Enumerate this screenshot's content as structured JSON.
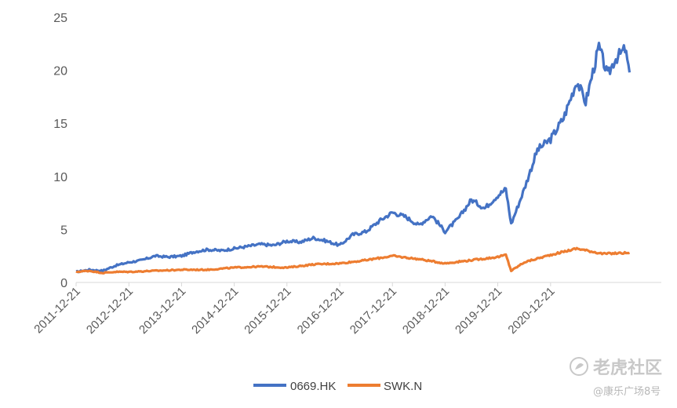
{
  "chart_data": {
    "type": "line",
    "title": "",
    "xlabel": "",
    "ylabel": "",
    "ylim": [
      0,
      25
    ],
    "yticks": [
      0,
      5,
      10,
      15,
      20,
      25
    ],
    "xlim": [
      "2011-12-21",
      "2021-12-21"
    ],
    "xticks": [
      "2011-12-21",
      "2012-12-21",
      "2013-12-21",
      "2014-12-21",
      "2015-12-21",
      "2016-12-21",
      "2017-12-21",
      "2018-12-21",
      "2019-12-21",
      "2020-12-21"
    ],
    "grid": false,
    "legend": "bottom",
    "series": [
      {
        "name": "0669.HK",
        "color": "#4472C4",
        "points": [
          [
            "2011-12-21",
            1.0
          ],
          [
            "2012-03-21",
            1.2
          ],
          [
            "2012-06-21",
            1.1
          ],
          [
            "2012-09-21",
            1.6
          ],
          [
            "2012-12-21",
            1.9
          ],
          [
            "2013-03-21",
            2.1
          ],
          [
            "2013-06-21",
            2.5
          ],
          [
            "2013-09-21",
            2.4
          ],
          [
            "2013-12-21",
            2.5
          ],
          [
            "2014-03-21",
            2.9
          ],
          [
            "2014-06-21",
            3.1
          ],
          [
            "2014-09-21",
            3.0
          ],
          [
            "2014-12-21",
            3.2
          ],
          [
            "2015-03-21",
            3.4
          ],
          [
            "2015-06-21",
            3.6
          ],
          [
            "2015-09-21",
            3.5
          ],
          [
            "2015-12-21",
            3.9
          ],
          [
            "2016-03-21",
            3.8
          ],
          [
            "2016-06-21",
            4.2
          ],
          [
            "2016-09-21",
            3.9
          ],
          [
            "2016-12-21",
            3.5
          ],
          [
            "2017-03-21",
            4.5
          ],
          [
            "2017-06-21",
            4.8
          ],
          [
            "2017-09-21",
            5.8
          ],
          [
            "2017-12-21",
            6.6
          ],
          [
            "2018-03-21",
            6.2
          ],
          [
            "2018-06-21",
            5.4
          ],
          [
            "2018-09-21",
            6.3
          ],
          [
            "2018-12-21",
            4.8
          ],
          [
            "2019-03-21",
            6.0
          ],
          [
            "2019-06-21",
            7.8
          ],
          [
            "2019-09-21",
            7.0
          ],
          [
            "2019-12-21",
            8.2
          ],
          [
            "2020-02-15",
            8.8
          ],
          [
            "2020-03-23",
            5.5
          ],
          [
            "2020-06-21",
            8.8
          ],
          [
            "2020-09-21",
            12.5
          ],
          [
            "2020-12-21",
            13.5
          ],
          [
            "2021-03-21",
            15.5
          ],
          [
            "2021-06-21",
            19.0
          ],
          [
            "2021-08-21",
            17.0
          ],
          [
            "2021-11-21",
            22.2
          ],
          [
            "2022-01-21",
            19.5
          ],
          [
            "2022-03-10",
            21.0
          ],
          [
            "2022-05-21",
            22.0
          ],
          [
            "2022-06-21",
            19.8
          ]
        ]
      },
      {
        "name": "SWK.N",
        "color": "#ED7D31",
        "points": [
          [
            "2011-12-21",
            1.0
          ],
          [
            "2012-03-21",
            1.1
          ],
          [
            "2012-06-21",
            0.9
          ],
          [
            "2012-09-21",
            1.0
          ],
          [
            "2012-12-21",
            1.0
          ],
          [
            "2013-06-21",
            1.1
          ],
          [
            "2013-12-21",
            1.2
          ],
          [
            "2014-06-21",
            1.2
          ],
          [
            "2014-12-21",
            1.4
          ],
          [
            "2015-06-21",
            1.5
          ],
          [
            "2015-12-21",
            1.4
          ],
          [
            "2016-06-21",
            1.7
          ],
          [
            "2016-12-21",
            1.8
          ],
          [
            "2017-06-21",
            2.1
          ],
          [
            "2017-12-21",
            2.5
          ],
          [
            "2018-06-21",
            2.2
          ],
          [
            "2018-12-21",
            1.8
          ],
          [
            "2019-06-21",
            2.1
          ],
          [
            "2019-12-21",
            2.4
          ],
          [
            "2020-02-15",
            2.6
          ],
          [
            "2020-03-23",
            1.1
          ],
          [
            "2020-06-21",
            1.9
          ],
          [
            "2020-12-21",
            2.6
          ],
          [
            "2021-06-21",
            3.2
          ],
          [
            "2021-12-21",
            2.7
          ],
          [
            "2022-06-21",
            2.8
          ]
        ]
      }
    ]
  },
  "watermark": {
    "brand": "老虎社区",
    "handle": "@康乐广场8号"
  }
}
